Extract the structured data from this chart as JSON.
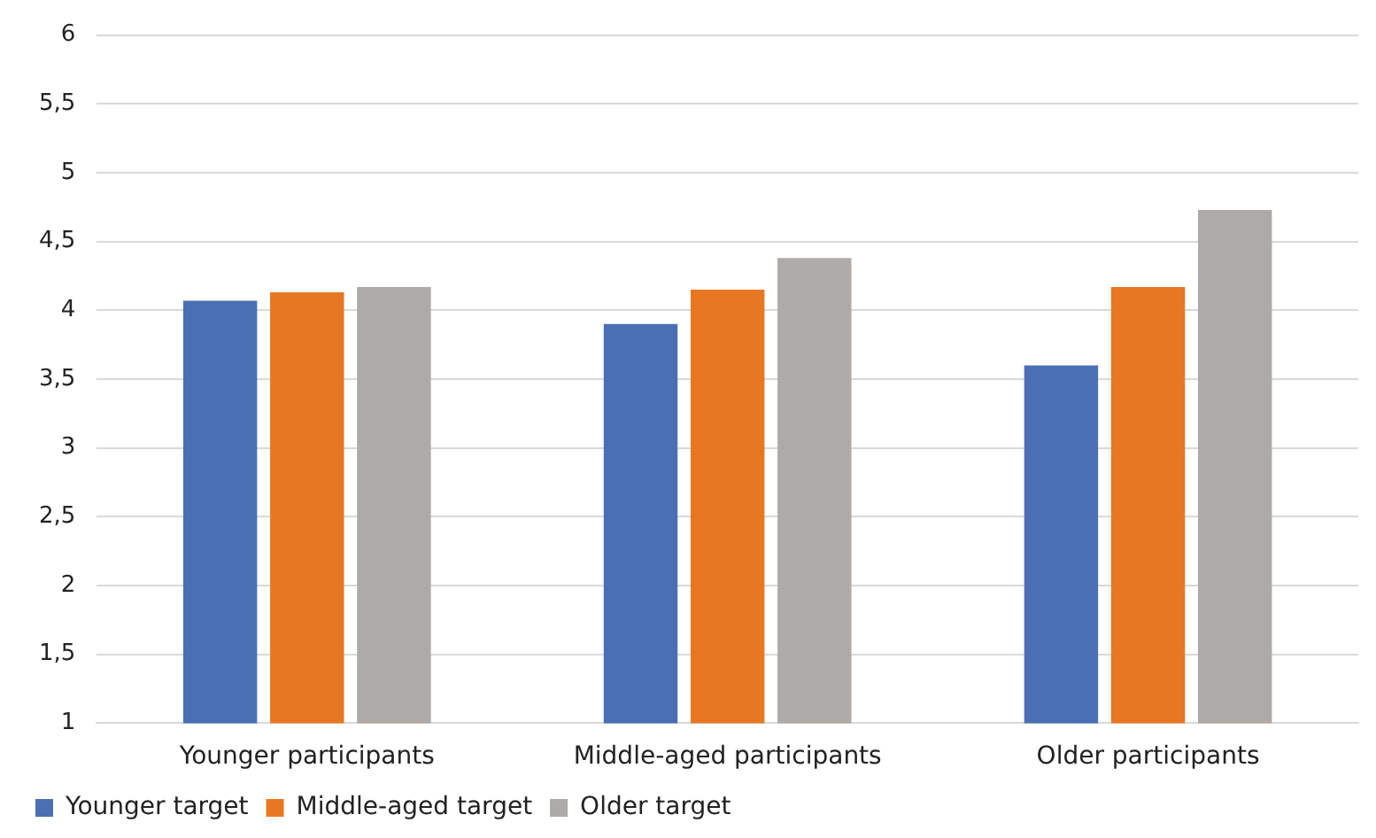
{
  "chart_data": {
    "type": "bar",
    "categories": [
      "Younger participants",
      "Middle-aged participants",
      "Older participants"
    ],
    "series": [
      {
        "name": "Younger target",
        "color": "#4a6fb5",
        "values": [
          4.07,
          3.9,
          3.6
        ]
      },
      {
        "name": "Middle-aged target",
        "color": "#e87722",
        "values": [
          4.13,
          4.15,
          4.17
        ]
      },
      {
        "name": "Older target",
        "color": "#adaaa8",
        "values": [
          4.17,
          4.38,
          4.73
        ]
      }
    ],
    "ylim": [
      1,
      6
    ],
    "yticks": [
      1,
      {
        "value": 1.5,
        "label": "1,5"
      },
      2,
      {
        "value": 2.5,
        "label": "2,5"
      },
      3,
      {
        "value": 3.5,
        "label": "3,5"
      },
      4,
      {
        "value": 4.5,
        "label": "4,5"
      },
      5,
      {
        "value": 5.5,
        "label": "5,5"
      },
      6
    ],
    "grid": "y",
    "legend": "bottom"
  }
}
